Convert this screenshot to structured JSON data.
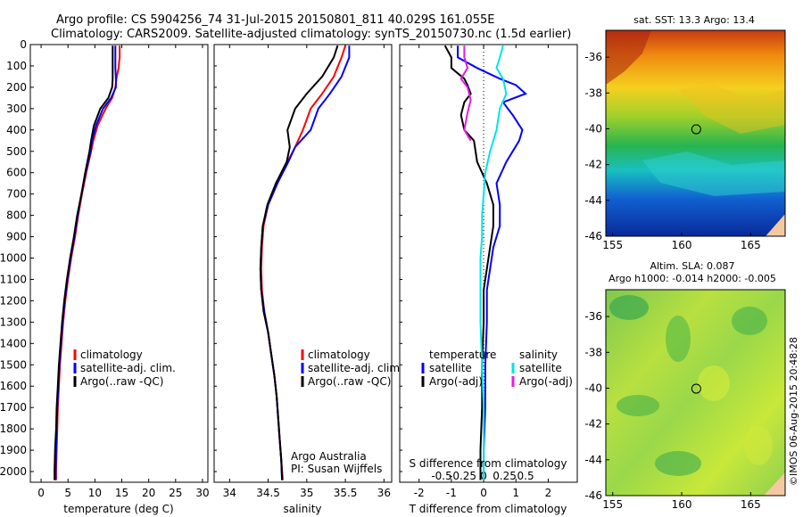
{
  "header": {
    "line1": "Argo profile: CS 5904256_74 31-Jul-2015 20150801_811 40.029S 161.055E",
    "line2": "Climatology: CARS2009. Satellite-adjusted climatology: synTS_20150730.nc (1.5d earlier)"
  },
  "colors": {
    "climatology": "#ff0000",
    "satellite": "#0000ff",
    "argo": "#000000",
    "satellite_salinity": "#00e5e5",
    "argo_salinity_adj": "#e020e0",
    "float_marker": "#000000",
    "land": "#f5c9a0"
  },
  "chart_data": [
    {
      "type": "line",
      "name": "temperature-profile",
      "xlabel": "temperature (deg C)",
      "xlim": [
        -2,
        31
      ],
      "ylim": [
        2050,
        0
      ],
      "xticks": [
        0,
        5,
        10,
        15,
        20,
        25,
        30
      ],
      "yticks": [
        0,
        100,
        200,
        300,
        400,
        500,
        600,
        700,
        800,
        900,
        1000,
        1100,
        1200,
        1300,
        1400,
        1500,
        1600,
        1700,
        1800,
        1900,
        2000
      ],
      "legend": [
        "climatology",
        "satellite-adj. clim.",
        "Argo(..raw -QC)"
      ],
      "legend_position": "lower-middle",
      "series": [
        {
          "name": "climatology",
          "color_key": "climatology",
          "points": [
            [
              14.6,
              5
            ],
            [
              14.6,
              60
            ],
            [
              14.4,
              110
            ],
            [
              14.0,
              160
            ],
            [
              13.8,
              200
            ],
            [
              13.2,
              250
            ],
            [
              12.0,
              300
            ],
            [
              10.5,
              380
            ],
            [
              9.7,
              450
            ],
            [
              9.3,
              500
            ],
            [
              8.4,
              600
            ],
            [
              7.6,
              700
            ],
            [
              6.9,
              800
            ],
            [
              6.3,
              900
            ],
            [
              5.6,
              1000
            ],
            [
              5.0,
              1100
            ],
            [
              4.5,
              1200
            ],
            [
              4.1,
              1300
            ],
            [
              3.8,
              1400
            ],
            [
              3.5,
              1500
            ],
            [
              3.3,
              1600
            ],
            [
              3.1,
              1700
            ],
            [
              3.0,
              1800
            ],
            [
              2.9,
              1900
            ],
            [
              2.8,
              2000
            ],
            [
              2.8,
              2040
            ]
          ]
        },
        {
          "name": "satellite-adj. clim.",
          "color_key": "satellite",
          "points": [
            [
              13.8,
              5
            ],
            [
              13.8,
              60
            ],
            [
              13.8,
              110
            ],
            [
              13.9,
              160
            ],
            [
              13.9,
              200
            ],
            [
              13.0,
              250
            ],
            [
              11.5,
              300
            ],
            [
              10.2,
              380
            ],
            [
              9.5,
              450
            ],
            [
              9.2,
              500
            ],
            [
              8.3,
              600
            ],
            [
              7.5,
              700
            ],
            [
              6.8,
              800
            ],
            [
              6.2,
              900
            ],
            [
              5.5,
              1000
            ],
            [
              4.9,
              1100
            ],
            [
              4.4,
              1200
            ],
            [
              4.0,
              1300
            ],
            [
              3.7,
              1400
            ],
            [
              3.4,
              1500
            ],
            [
              3.2,
              1600
            ],
            [
              3.0,
              1700
            ],
            [
              2.9,
              1800
            ],
            [
              2.8,
              1900
            ],
            [
              2.7,
              2000
            ],
            [
              2.7,
              2040
            ]
          ]
        },
        {
          "name": "Argo(..raw -QC)",
          "color_key": "argo",
          "points": [
            [
              13.3,
              5
            ],
            [
              13.3,
              60
            ],
            [
              13.3,
              110
            ],
            [
              13.3,
              160
            ],
            [
              13.2,
              200
            ],
            [
              12.5,
              250
            ],
            [
              11.0,
              300
            ],
            [
              9.8,
              380
            ],
            [
              9.3,
              450
            ],
            [
              9.0,
              500
            ],
            [
              8.2,
              600
            ],
            [
              7.5,
              700
            ],
            [
              6.7,
              800
            ],
            [
              6.1,
              900
            ],
            [
              5.4,
              1000
            ],
            [
              4.8,
              1100
            ],
            [
              4.3,
              1200
            ],
            [
              3.9,
              1300
            ],
            [
              3.6,
              1400
            ],
            [
              3.3,
              1500
            ],
            [
              3.1,
              1600
            ],
            [
              2.9,
              1700
            ],
            [
              2.8,
              1800
            ],
            [
              2.6,
              1900
            ],
            [
              2.5,
              2000
            ],
            [
              2.5,
              2040
            ]
          ]
        }
      ]
    },
    {
      "type": "line",
      "name": "salinity-profile",
      "xlabel": "salinity",
      "xlim": [
        33.8,
        36.1
      ],
      "ylim": [
        2050,
        0
      ],
      "xticks": [
        34,
        34.5,
        35,
        35.5,
        36
      ],
      "legend": [
        "climatology",
        "satellite-adj. clim.",
        "Argo(..raw -QC)"
      ],
      "legend_position": "lower-middle",
      "annotation": {
        "line1": "Argo Australia",
        "line2": "PI: Susan Wijffels"
      },
      "series": [
        {
          "name": "climatology",
          "color_key": "climatology",
          "points": [
            [
              35.5,
              5
            ],
            [
              35.45,
              60
            ],
            [
              35.35,
              150
            ],
            [
              35.2,
              230
            ],
            [
              35.05,
              300
            ],
            [
              34.95,
              400
            ],
            [
              34.85,
              480
            ],
            [
              34.75,
              550
            ],
            [
              34.62,
              650
            ],
            [
              34.5,
              750
            ],
            [
              34.44,
              850
            ],
            [
              34.42,
              950
            ],
            [
              34.41,
              1050
            ],
            [
              34.42,
              1150
            ],
            [
              34.45,
              1250
            ],
            [
              34.5,
              1350
            ],
            [
              34.54,
              1450
            ],
            [
              34.58,
              1550
            ],
            [
              34.61,
              1650
            ],
            [
              34.63,
              1750
            ],
            [
              34.65,
              1850
            ],
            [
              34.67,
              1950
            ],
            [
              34.69,
              2040
            ]
          ]
        },
        {
          "name": "satellite-adj. clim.",
          "color_key": "satellite",
          "points": [
            [
              35.55,
              5
            ],
            [
              35.55,
              60
            ],
            [
              35.45,
              150
            ],
            [
              35.3,
              230
            ],
            [
              35.15,
              300
            ],
            [
              35.05,
              400
            ],
            [
              34.85,
              480
            ],
            [
              34.76,
              550
            ],
            [
              34.62,
              650
            ],
            [
              34.5,
              750
            ],
            [
              34.43,
              850
            ],
            [
              34.41,
              950
            ],
            [
              34.4,
              1050
            ],
            [
              34.41,
              1150
            ],
            [
              34.45,
              1250
            ],
            [
              34.5,
              1350
            ],
            [
              34.54,
              1450
            ],
            [
              34.58,
              1550
            ],
            [
              34.61,
              1650
            ],
            [
              34.63,
              1750
            ],
            [
              34.65,
              1850
            ],
            [
              34.67,
              1950
            ],
            [
              34.68,
              2040
            ]
          ]
        },
        {
          "name": "Argo(..raw -QC)",
          "color_key": "argo",
          "points": [
            [
              35.4,
              5
            ],
            [
              35.35,
              60
            ],
            [
              35.2,
              150
            ],
            [
              35.0,
              230
            ],
            [
              34.85,
              300
            ],
            [
              34.75,
              400
            ],
            [
              34.78,
              480
            ],
            [
              34.74,
              550
            ],
            [
              34.6,
              650
            ],
            [
              34.49,
              750
            ],
            [
              34.43,
              850
            ],
            [
              34.41,
              950
            ],
            [
              34.4,
              1050
            ],
            [
              34.41,
              1150
            ],
            [
              34.44,
              1250
            ],
            [
              34.5,
              1350
            ],
            [
              34.54,
              1450
            ],
            [
              34.58,
              1550
            ],
            [
              34.61,
              1650
            ],
            [
              34.63,
              1750
            ],
            [
              34.65,
              1850
            ],
            [
              34.67,
              1950
            ],
            [
              34.68,
              2040
            ]
          ]
        }
      ]
    },
    {
      "type": "line",
      "name": "difference-profile",
      "xlabel": "T difference from climatology",
      "top_axis_label": "S difference from climatology",
      "xlim": [
        -2.6,
        2.9
      ],
      "ylim": [
        2050,
        0
      ],
      "xticks": [
        -2,
        -1,
        0,
        1,
        2
      ],
      "top_ticks": [
        -0.5,
        -0.25,
        0,
        0.25,
        0.5
      ],
      "top_tick_labels": [
        "-0.5",
        "-0.25",
        "0",
        "0.25",
        "0.5"
      ],
      "legend_temperature": {
        "heading": "temperature",
        "items": [
          "satellite",
          "Argo(-adj)"
        ]
      },
      "legend_salinity": {
        "heading": "salinity",
        "items": [
          "satellite",
          "Argo(-adj)"
        ]
      },
      "series": [
        {
          "name": "temperature satellite",
          "color_key": "satellite",
          "points": [
            [
              -0.8,
              5
            ],
            [
              -0.8,
              60
            ],
            [
              -0.2,
              110
            ],
            [
              0.5,
              160
            ],
            [
              1.0,
              190
            ],
            [
              1.3,
              230
            ],
            [
              0.6,
              270
            ],
            [
              0.9,
              330
            ],
            [
              1.2,
              400
            ],
            [
              1.1,
              450
            ],
            [
              0.7,
              550
            ],
            [
              0.4,
              650
            ],
            [
              0.5,
              750
            ],
            [
              0.5,
              850
            ],
            [
              0.3,
              950
            ],
            [
              0.2,
              1050
            ],
            [
              0.1,
              1150
            ],
            [
              0.1,
              1300
            ],
            [
              0.05,
              1500
            ],
            [
              0.05,
              1700
            ],
            [
              0.0,
              1900
            ],
            [
              0.0,
              2040
            ]
          ]
        },
        {
          "name": "temperature Argo(-adj)",
          "color_key": "argo",
          "points": [
            [
              -1.2,
              5
            ],
            [
              -1.0,
              60
            ],
            [
              -1.0,
              110
            ],
            [
              -0.6,
              160
            ],
            [
              -0.5,
              190
            ],
            [
              -0.4,
              230
            ],
            [
              -0.6,
              270
            ],
            [
              -0.7,
              330
            ],
            [
              -0.6,
              400
            ],
            [
              -0.3,
              450
            ],
            [
              -0.2,
              550
            ],
            [
              0.1,
              650
            ],
            [
              0.3,
              750
            ],
            [
              0.3,
              850
            ],
            [
              0.2,
              950
            ],
            [
              0.1,
              1050
            ],
            [
              0.0,
              1150
            ],
            [
              0.0,
              1300
            ],
            [
              -0.05,
              1500
            ],
            [
              -0.05,
              1700
            ],
            [
              -0.1,
              1900
            ],
            [
              -0.1,
              2040
            ]
          ]
        },
        {
          "name": "salinity satellite",
          "color_key": "satellite_salinity",
          "points": [
            [
              0.6,
              5
            ],
            [
              0.5,
              60
            ],
            [
              0.4,
              110
            ],
            [
              0.6,
              160
            ],
            [
              0.7,
              230
            ],
            [
              0.5,
              300
            ],
            [
              0.4,
              400
            ],
            [
              0.2,
              500
            ],
            [
              0.05,
              600
            ],
            [
              0.0,
              700
            ],
            [
              -0.05,
              800
            ],
            [
              -0.05,
              900
            ],
            [
              -0.1,
              1000
            ],
            [
              -0.1,
              1100
            ],
            [
              -0.1,
              1200
            ],
            [
              -0.1,
              1300
            ],
            [
              -0.05,
              1500
            ],
            [
              0.0,
              1700
            ],
            [
              0.0,
              1900
            ],
            [
              0.0,
              2040
            ]
          ]
        },
        {
          "name": "salinity Argo(-adj)",
          "color_key": "argo_salinity_adj",
          "points": [
            [
              -0.6,
              5
            ],
            [
              -0.6,
              60
            ],
            [
              -0.5,
              110
            ],
            [
              -0.7,
              160
            ],
            [
              -0.5,
              200
            ],
            [
              -0.4,
              260
            ],
            [
              -0.5,
              320
            ],
            [
              -0.6,
              400
            ],
            [
              -0.4,
              450
            ]
          ]
        }
      ]
    },
    {
      "type": "heatmap",
      "name": "sst-map",
      "title": "sat. SST: 13.3 Argo: 13.4",
      "xlim": [
        154.5,
        167.5
      ],
      "ylim": [
        -46,
        -34.5
      ],
      "xticks": [
        155,
        160,
        165
      ],
      "yticks": [
        -36,
        -38,
        -40,
        -42,
        -44,
        -46
      ],
      "float_position": [
        161.055,
        -40.029
      ]
    },
    {
      "type": "heatmap",
      "name": "sla-map",
      "title": "Altim. SLA: 0.087",
      "subtitle": "Argo h1000: -0.014 h2000: -0.005",
      "xlim": [
        154.5,
        167.5
      ],
      "ylim": [
        -46,
        -34.5
      ],
      "xticks": [
        155,
        160,
        165
      ],
      "yticks": [
        -36,
        -38,
        -40,
        -42,
        -44,
        -46
      ],
      "float_position": [
        161.055,
        -40.029
      ]
    }
  ],
  "footer": {
    "credit": "©IMOS 06-Aug-2015 20:48:28"
  }
}
